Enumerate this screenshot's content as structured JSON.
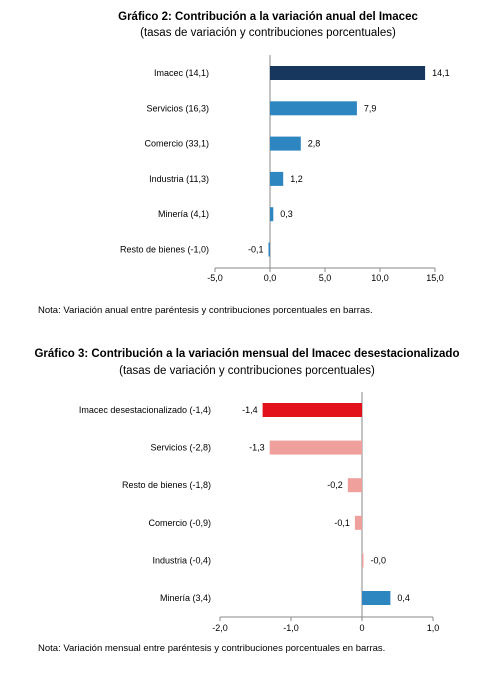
{
  "chart_data": [
    {
      "type": "bar",
      "orientation": "horizontal",
      "title": "Gráfico 2: Contribución a la variación anual del Imacec",
      "subtitle": "(tasas de variación y contribuciones porcentuales)",
      "categories": [
        "Imacec (14,1)",
        "Servicios (16,3)",
        "Comercio (33,1)",
        "Industria (11,3)",
        "Minería (4,1)",
        "Resto de bienes (-1,0)"
      ],
      "values": [
        14.1,
        7.9,
        2.8,
        1.2,
        0.3,
        -0.1
      ],
      "value_labels": [
        "14,1",
        "7,9",
        "2,8",
        "1,2",
        "0,3",
        "-0,1"
      ],
      "colors": [
        "#17375e",
        "#2e86c1",
        "#2e86c1",
        "#2e86c1",
        "#2e86c1",
        "#2e86c1"
      ],
      "xlim": [
        -5,
        15
      ],
      "xticks": [
        -5,
        0,
        5,
        10,
        15
      ],
      "xtick_labels": [
        "-5,0",
        "0,0",
        "5,0",
        "10,0",
        "15,0"
      ],
      "note": "Nota: Variación anual entre paréntesis y contribuciones porcentuales en barras."
    },
    {
      "type": "bar",
      "orientation": "horizontal",
      "title": "Gráfico 3: Contribución a la variación mensual del Imacec desestacionalizado",
      "subtitle": "(tasas de variación y contribuciones porcentuales)",
      "categories": [
        "Imacec desestacionalizado (-1,4)",
        "Servicios (-2,8)",
        "Resto de bienes (-1,8)",
        "Comercio (-0,9)",
        "Industria (-0,4)",
        "Minería (3,4)"
      ],
      "values": [
        -1.4,
        -1.3,
        -0.2,
        -0.1,
        -0.0,
        0.4
      ],
      "value_labels": [
        "-1,4",
        "-1,3",
        "-0,2",
        "-0,1",
        "-0,0",
        "0,4"
      ],
      "colors": [
        "#e3111b",
        "#f0a09c",
        "#f0a09c",
        "#f0a09c",
        "#f0a09c",
        "#2e86c1"
      ],
      "xlim": [
        -2,
        1
      ],
      "xticks": [
        -2,
        -1,
        0,
        1
      ],
      "xtick_labels": [
        "-2,0",
        "-1,0",
        "0",
        "1,0"
      ],
      "note": "Nota: Variación mensual entre paréntesis y contribuciones porcentuales en barras."
    }
  ]
}
